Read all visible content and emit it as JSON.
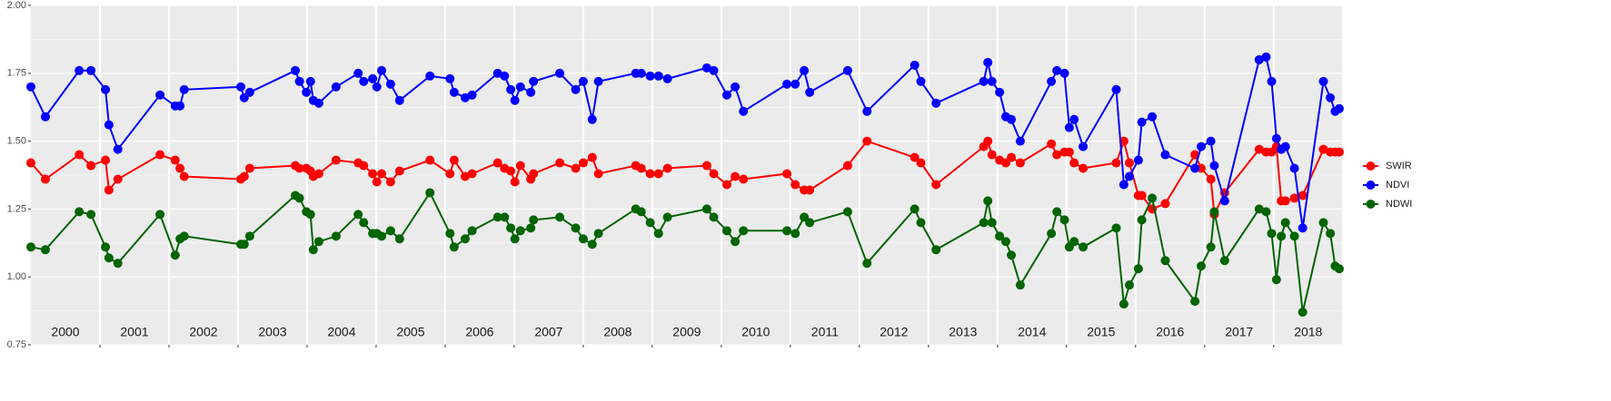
{
  "chart_data": {
    "type": "line",
    "x": [
      2000.0,
      2000.21,
      2000.7,
      2000.87,
      2001.08,
      2001.13,
      2001.26,
      2001.87,
      2002.09,
      2002.16,
      2002.22,
      2003.04,
      2003.09,
      2003.17,
      2003.83,
      2003.89,
      2003.99,
      2004.05,
      2004.09,
      2004.17,
      2004.42,
      2004.74,
      2004.82,
      2004.95,
      2005.01,
      2005.08,
      2005.21,
      2005.34,
      2005.78,
      2006.07,
      2006.13,
      2006.29,
      2006.39,
      2006.76,
      2006.86,
      2006.95,
      2007.01,
      2007.09,
      2007.24,
      2007.28,
      2007.66,
      2007.89,
      2008.0,
      2008.13,
      2008.22,
      2008.76,
      2008.84,
      2008.97,
      2009.09,
      2009.22,
      2009.79,
      2009.89,
      2010.08,
      2010.2,
      2010.32,
      2010.95,
      2011.07,
      2011.2,
      2011.28,
      2011.83,
      2012.11,
      2012.8,
      2012.89,
      2013.11,
      2013.8,
      2013.86,
      2013.92,
      2014.03,
      2014.12,
      2014.2,
      2014.33,
      2014.78,
      2014.86,
      2014.97,
      2015.04,
      2015.11,
      2015.24,
      2015.72,
      2015.83,
      2015.91,
      2016.04,
      2016.09,
      2016.24,
      2016.43,
      2016.86,
      2016.95,
      2017.09,
      2017.14,
      2017.29,
      2017.79,
      2017.89,
      2017.97,
      2018.04,
      2018.11,
      2018.17,
      2018.3,
      2018.42,
      2018.72,
      2018.82,
      2018.89,
      2018.95
    ],
    "series": [
      {
        "name": "SWIR",
        "color": "#ff0000",
        "values": [
          1.42,
          1.36,
          1.45,
          1.41,
          1.43,
          1.32,
          1.36,
          1.45,
          1.43,
          1.4,
          1.37,
          1.36,
          1.37,
          1.4,
          1.41,
          1.4,
          1.4,
          1.39,
          1.37,
          1.38,
          1.43,
          1.42,
          1.41,
          1.38,
          1.35,
          1.38,
          1.35,
          1.39,
          1.43,
          1.38,
          1.43,
          1.37,
          1.38,
          1.42,
          1.4,
          1.39,
          1.35,
          1.41,
          1.36,
          1.38,
          1.42,
          1.4,
          1.42,
          1.44,
          1.38,
          1.41,
          1.4,
          1.38,
          1.38,
          1.4,
          1.41,
          1.38,
          1.34,
          1.37,
          1.36,
          1.38,
          1.34,
          1.32,
          1.32,
          1.41,
          1.5,
          1.44,
          1.42,
          1.34,
          1.48,
          1.5,
          1.45,
          1.43,
          1.42,
          1.44,
          1.42,
          1.49,
          1.45,
          1.46,
          1.46,
          1.42,
          1.4,
          1.42,
          1.5,
          1.42,
          1.3,
          1.3,
          1.25,
          1.27,
          1.45,
          1.4,
          1.36,
          1.23,
          1.31,
          1.47,
          1.46,
          1.46,
          1.48,
          1.28,
          1.28,
          1.29,
          1.3,
          1.47,
          1.46,
          1.46,
          1.46
        ]
      },
      {
        "name": "NDVI",
        "color": "#0000ff",
        "values": [
          1.7,
          1.59,
          1.76,
          1.76,
          1.69,
          1.56,
          1.47,
          1.67,
          1.63,
          1.63,
          1.69,
          1.7,
          1.66,
          1.68,
          1.76,
          1.72,
          1.68,
          1.72,
          1.65,
          1.64,
          1.7,
          1.75,
          1.72,
          1.73,
          1.7,
          1.76,
          1.71,
          1.65,
          1.74,
          1.73,
          1.68,
          1.66,
          1.67,
          1.75,
          1.74,
          1.69,
          1.65,
          1.7,
          1.68,
          1.72,
          1.75,
          1.69,
          1.72,
          1.58,
          1.72,
          1.75,
          1.75,
          1.74,
          1.74,
          1.73,
          1.77,
          1.76,
          1.67,
          1.7,
          1.61,
          1.71,
          1.71,
          1.76,
          1.68,
          1.76,
          1.61,
          1.78,
          1.72,
          1.64,
          1.72,
          1.79,
          1.72,
          1.68,
          1.59,
          1.58,
          1.5,
          1.72,
          1.76,
          1.75,
          1.55,
          1.58,
          1.48,
          1.69,
          1.34,
          1.37,
          1.43,
          1.57,
          1.59,
          1.45,
          1.4,
          1.48,
          1.5,
          1.41,
          1.28,
          1.8,
          1.81,
          1.72,
          1.51,
          1.47,
          1.48,
          1.4,
          1.18,
          1.72,
          1.66,
          1.61,
          1.62
        ]
      },
      {
        "name": "NDWI",
        "color": "#006400",
        "values": [
          1.11,
          1.1,
          1.24,
          1.23,
          1.11,
          1.07,
          1.05,
          1.23,
          1.08,
          1.14,
          1.15,
          1.12,
          1.12,
          1.15,
          1.3,
          1.29,
          1.24,
          1.23,
          1.1,
          1.13,
          1.15,
          1.23,
          1.2,
          1.16,
          1.16,
          1.15,
          1.17,
          1.14,
          1.31,
          1.16,
          1.11,
          1.14,
          1.17,
          1.22,
          1.22,
          1.18,
          1.14,
          1.17,
          1.18,
          1.21,
          1.22,
          1.18,
          1.14,
          1.12,
          1.16,
          1.25,
          1.24,
          1.2,
          1.16,
          1.22,
          1.25,
          1.22,
          1.17,
          1.13,
          1.17,
          1.17,
          1.16,
          1.22,
          1.2,
          1.24,
          1.05,
          1.25,
          1.2,
          1.1,
          1.2,
          1.28,
          1.2,
          1.15,
          1.13,
          1.08,
          0.97,
          1.16,
          1.24,
          1.21,
          1.11,
          1.13,
          1.11,
          1.18,
          0.9,
          0.97,
          1.03,
          1.21,
          1.29,
          1.06,
          0.91,
          1.04,
          1.11,
          1.24,
          1.06,
          1.25,
          1.24,
          1.16,
          0.99,
          1.15,
          1.2,
          1.15,
          0.87,
          1.2,
          1.16,
          1.04,
          1.03
        ]
      }
    ],
    "xlim": [
      2000,
      2018.99
    ],
    "year_boundaries": [
      2001,
      2002,
      2003,
      2004,
      2005,
      2006,
      2007,
      2008,
      2009,
      2010,
      2011,
      2012,
      2013,
      2014,
      2015,
      2016,
      2017,
      2018
    ],
    "year_labels": [
      "2000",
      "2001",
      "2002",
      "2003",
      "2004",
      "2005",
      "2006",
      "2007",
      "2008",
      "2009",
      "2010",
      "2011",
      "2012",
      "2013",
      "2014",
      "2015",
      "2016",
      "2017",
      "2018"
    ],
    "ylim": [
      0.75,
      2.0
    ],
    "yticks": [
      {
        "value": 0.75,
        "label": "0.75"
      },
      {
        "value": 1.0,
        "label": "1.00"
      },
      {
        "value": 1.25,
        "label": "1.25"
      },
      {
        "value": 1.5,
        "label": "1.50"
      },
      {
        "value": 1.75,
        "label": "1.75"
      },
      {
        "value": 2.0,
        "label": "2.00"
      }
    ],
    "grid": true,
    "minor_grid": true,
    "legend": "right"
  }
}
